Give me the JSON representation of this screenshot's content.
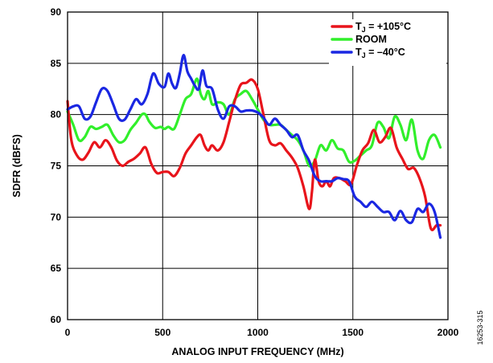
{
  "figure_id": "16253-315",
  "chart_data": {
    "type": "line",
    "xlabel": "ANALOG INPUT FREQUENCY (MHz)",
    "ylabel": "SDFR (dBFS)",
    "xlim": [
      0,
      2000
    ],
    "ylim": [
      60,
      90
    ],
    "xticks": [
      0,
      500,
      1000,
      1500,
      2000
    ],
    "yticks": [
      60,
      65,
      70,
      75,
      80,
      85,
      90
    ],
    "grid": true,
    "legend_position": "top-right",
    "series": [
      {
        "name": "T_J = +105°C",
        "label_main": "T",
        "label_sub": "J",
        "label_rest": " = +105°C",
        "color": "#e8141b",
        "x": [
          0,
          20,
          50,
          80,
          110,
          140,
          170,
          200,
          230,
          260,
          290,
          320,
          350,
          380,
          410,
          440,
          470,
          500,
          530,
          560,
          590,
          620,
          650,
          680,
          700,
          720,
          740,
          760,
          790,
          820,
          850,
          880,
          910,
          940,
          970,
          1000,
          1030,
          1060,
          1090,
          1120,
          1150,
          1180,
          1210,
          1240,
          1270,
          1285,
          1300,
          1320,
          1340,
          1360,
          1380,
          1400,
          1430,
          1460,
          1490,
          1520,
          1550,
          1580,
          1610,
          1640,
          1670,
          1700,
          1730,
          1760,
          1790,
          1820,
          1850,
          1880,
          1910,
          1940,
          1960
        ],
        "y": [
          81.3,
          77.5,
          76.0,
          75.6,
          76.3,
          77.3,
          76.8,
          77.5,
          76.8,
          75.5,
          75.0,
          75.4,
          75.7,
          76.2,
          76.8,
          75.2,
          74.3,
          74.4,
          74.4,
          74.0,
          74.8,
          76.2,
          77.0,
          77.8,
          78.0,
          77.0,
          76.5,
          77.0,
          76.5,
          77.3,
          79.3,
          81.4,
          82.9,
          83.1,
          83.4,
          82.5,
          80.0,
          77.5,
          77.0,
          77.2,
          76.5,
          75.8,
          74.8,
          73.0,
          70.8,
          72.5,
          75.6,
          73.5,
          73.0,
          73.5,
          73.0,
          73.8,
          73.8,
          73.5,
          73.2,
          75.0,
          76.5,
          77.2,
          78.5,
          77.3,
          77.8,
          78.7,
          76.8,
          75.7,
          74.7,
          74.8,
          73.8,
          72.0,
          68.9,
          69.2,
          69.2
        ]
      },
      {
        "name": "ROOM",
        "label_main": "ROOM",
        "label_sub": "",
        "label_rest": "",
        "color": "#31ef2b",
        "x": [
          0,
          30,
          60,
          90,
          120,
          150,
          180,
          210,
          240,
          270,
          300,
          330,
          360,
          390,
          410,
          430,
          460,
          490,
          510,
          530,
          560,
          590,
          620,
          650,
          680,
          700,
          720,
          740,
          760,
          790,
          820,
          850,
          880,
          910,
          940,
          970,
          1000,
          1030,
          1060,
          1090,
          1120,
          1150,
          1180,
          1210,
          1240,
          1270,
          1300,
          1330,
          1360,
          1390,
          1420,
          1450,
          1480,
          1510,
          1540,
          1570,
          1600,
          1630,
          1660,
          1690,
          1720,
          1750,
          1780,
          1810,
          1840,
          1870,
          1900,
          1930,
          1960
        ],
        "y": [
          80.3,
          79.0,
          77.5,
          77.8,
          78.8,
          78.6,
          78.8,
          79.0,
          78.0,
          77.3,
          77.5,
          78.5,
          79.2,
          80.0,
          80.0,
          79.3,
          78.7,
          78.8,
          78.6,
          78.8,
          78.6,
          80.0,
          81.5,
          82.0,
          83.5,
          82.0,
          81.5,
          82.3,
          81.0,
          81.2,
          81.0,
          80.0,
          81.5,
          82.0,
          82.3,
          81.5,
          80.5,
          79.5,
          79.0,
          79.0,
          79.0,
          78.5,
          78.0,
          77.5,
          76.5,
          75.0,
          75.5,
          77.0,
          76.5,
          77.5,
          76.7,
          76.5,
          75.4,
          75.5,
          76.0,
          76.5,
          77.0,
          79.2,
          78.8,
          77.7,
          79.8,
          79.0,
          77.5,
          79.5,
          76.5,
          75.7,
          77.5,
          78.0,
          76.8
        ]
      },
      {
        "name": "T_J = −40°C",
        "label_main": "T",
        "label_sub": "J",
        "label_rest": " = –40°C",
        "color": "#1a27e2",
        "x": [
          0,
          30,
          60,
          90,
          120,
          150,
          180,
          210,
          240,
          270,
          300,
          330,
          360,
          390,
          420,
          450,
          480,
          510,
          530,
          550,
          570,
          590,
          610,
          630,
          650,
          670,
          690,
          710,
          730,
          760,
          790,
          820,
          850,
          880,
          910,
          940,
          970,
          1000,
          1030,
          1060,
          1090,
          1120,
          1150,
          1180,
          1210,
          1240,
          1270,
          1300,
          1330,
          1360,
          1390,
          1420,
          1450,
          1480,
          1510,
          1540,
          1570,
          1600,
          1630,
          1660,
          1690,
          1720,
          1750,
          1780,
          1810,
          1840,
          1870,
          1900,
          1930,
          1960
        ],
        "y": [
          80.5,
          80.8,
          80.8,
          79.6,
          79.8,
          81.2,
          82.5,
          82.3,
          81.0,
          79.6,
          79.5,
          80.5,
          81.5,
          81.0,
          82.0,
          84.0,
          83.0,
          82.7,
          84.0,
          83.0,
          82.6,
          84.0,
          85.8,
          84.2,
          83.5,
          82.8,
          82.5,
          84.3,
          82.8,
          82.5,
          80.5,
          79.6,
          80.8,
          80.8,
          80.3,
          80.4,
          80.4,
          80.2,
          79.7,
          79.0,
          79.6,
          79.0,
          78.5,
          77.8,
          78.0,
          76.5,
          75.5,
          74.0,
          73.5,
          73.5,
          73.5,
          73.8,
          73.7,
          73.5,
          72.0,
          71.5,
          71.0,
          71.5,
          71.0,
          70.5,
          70.5,
          69.7,
          70.6,
          69.7,
          69.5,
          70.8,
          70.5,
          71.3,
          70.5,
          68.0
        ]
      }
    ]
  }
}
